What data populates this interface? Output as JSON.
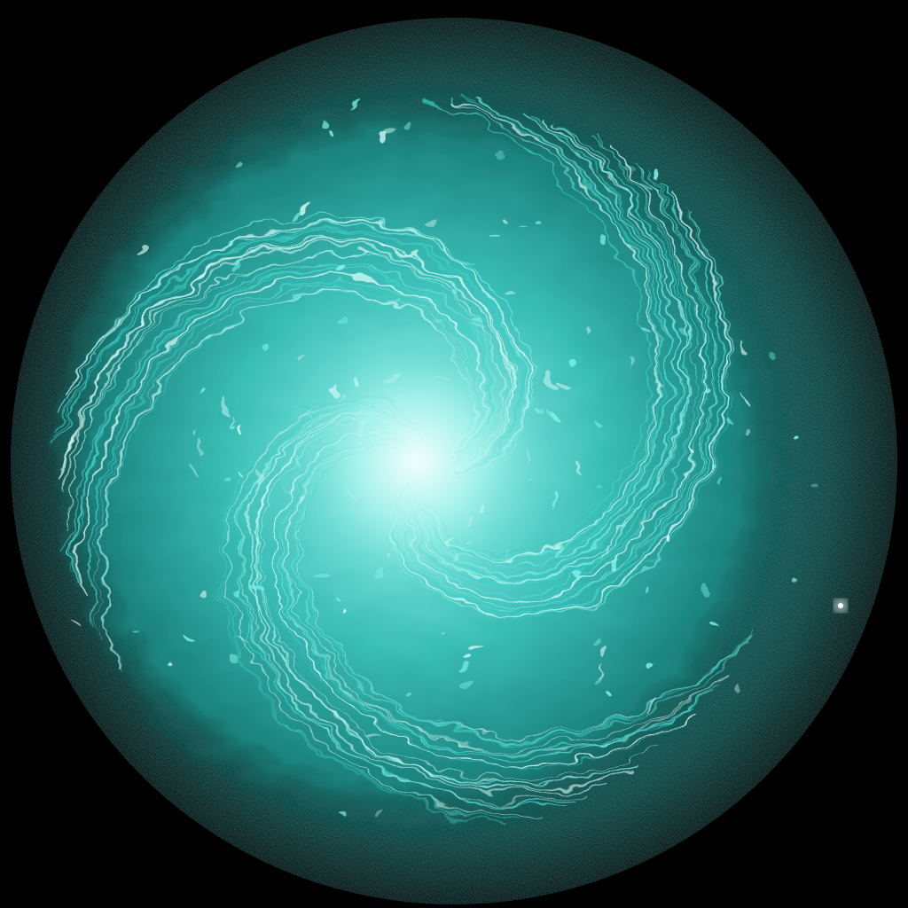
{
  "scene": {
    "subject": "swirl",
    "colors": {
      "background": "#000000",
      "halo_outer": "#05302f",
      "halo_mid": "#0b4a47",
      "body": "#1f9c97",
      "body_light": "#3fd0c8",
      "streak": "#7ef0e8",
      "core": "#dffffc"
    },
    "arms": 3,
    "rotation_direction": "counterclockwise-inward"
  }
}
